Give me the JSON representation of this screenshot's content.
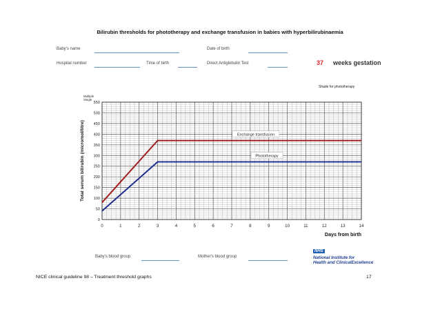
{
  "header": {
    "title": "Bilirubin thresholds for phototherapy and exchange transfusion in babies with hyperbilirubinaemia"
  },
  "form": {
    "babys_name_label": "Baby's name",
    "date_of_birth_label": "Date of birth",
    "hospital_number_label": "Hospital number",
    "time_of_birth_label": "Time of birth",
    "dat_label": "Direct Antiglobulin Test",
    "gestation_value": "37",
    "gestation_label": "weeks gestation",
    "shade_label": "Shade for phototherapy",
    "babys_blood_group_label": "Baby's blood group",
    "mothers_blood_group_label": "Mother's blood group"
  },
  "chart_data": {
    "type": "line",
    "title": "",
    "xlabel": "Days from birth",
    "ylabel": "Total serum bilirubin (micromol/litre)",
    "y_header": [
      "Multiple",
      "Single"
    ],
    "xlim": [
      0,
      14
    ],
    "ylim": [
      0,
      550
    ],
    "x_ticks": [
      0,
      1,
      2,
      3,
      4,
      5,
      6,
      7,
      8,
      9,
      10,
      11,
      12,
      13,
      14
    ],
    "y_ticks": [
      0,
      50,
      100,
      150,
      200,
      250,
      300,
      350,
      400,
      450,
      500,
      550
    ],
    "grid": true,
    "series": [
      {
        "name": "Exchange transfusion",
        "color": "#a01c1c",
        "x": [
          0,
          3,
          14
        ],
        "y": [
          80,
          370,
          370
        ]
      },
      {
        "name": "Phototherapy",
        "color": "#1f2d8f",
        "x": [
          0,
          3,
          14
        ],
        "y": [
          40,
          270,
          270
        ]
      }
    ]
  },
  "logo": {
    "badge": "NHS",
    "lines": [
      "National Institute for",
      "Health and ClinicalExcellence"
    ]
  },
  "footer": {
    "guideline": "NICE clinical guideline 98 – Treatment threshold graphs",
    "page_number": "17"
  }
}
